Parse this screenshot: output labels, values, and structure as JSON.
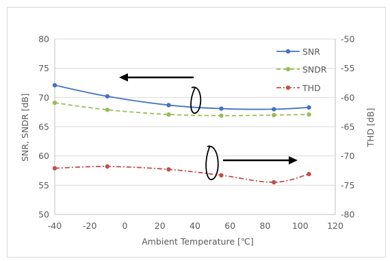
{
  "chart_data": {
    "type": "line",
    "xlabel": "Ambient Temperature [℃]",
    "ylabel_left": "SNR, SNDR [dB]",
    "ylabel_right": "THD [dB]",
    "x_ticks": [
      -40,
      -20,
      0,
      20,
      40,
      60,
      80,
      100,
      120
    ],
    "y_left_ticks": [
      50,
      55,
      60,
      65,
      70,
      75,
      80
    ],
    "y_right_ticks": [
      -50,
      -55,
      -60,
      -65,
      -70,
      -75,
      -80
    ],
    "xlim": [
      -40,
      120
    ],
    "ylim_left": [
      50,
      80
    ],
    "ylim_right": [
      -80,
      -50
    ],
    "grid": "horizontal",
    "legend_position": "top-right",
    "series": [
      {
        "name": "SNR",
        "axis": "left",
        "style": "solid",
        "color": "#4472c4",
        "x": [
          -40,
          -10,
          25,
          55,
          85,
          105
        ],
        "values": [
          72.1,
          70.2,
          68.7,
          68.1,
          68.0,
          68.3
        ]
      },
      {
        "name": "SNDR",
        "axis": "left",
        "style": "dash",
        "color": "#9bbb59",
        "x": [
          -40,
          -10,
          25,
          55,
          85,
          105
        ],
        "values": [
          69.1,
          67.9,
          67.1,
          66.9,
          67.0,
          67.1
        ]
      },
      {
        "name": "THD",
        "axis": "right",
        "style": "dashdot",
        "color": "#c0504d",
        "x": [
          -40,
          -10,
          25,
          55,
          85,
          105
        ],
        "values": [
          -72.1,
          -71.8,
          -72.3,
          -73.3,
          -74.5,
          -73.1
        ]
      }
    ]
  }
}
